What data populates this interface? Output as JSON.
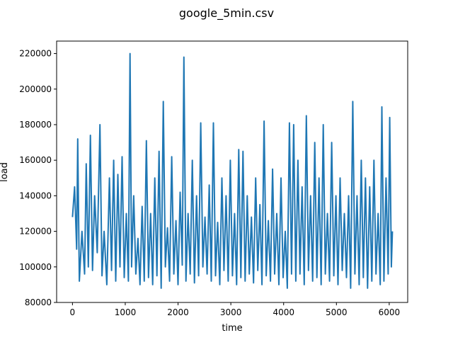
{
  "chart_data": {
    "type": "line",
    "title": "google_5min.csv",
    "xlabel": "time",
    "ylabel": "load",
    "xlim": [
      -300,
      6350
    ],
    "ylim": [
      80000,
      227000
    ],
    "x_ticks": [
      0,
      1000,
      2000,
      3000,
      4000,
      5000,
      6000
    ],
    "x_tick_labels": [
      "0",
      "1000",
      "2000",
      "3000",
      "4000",
      "5000",
      "6000"
    ],
    "y_ticks": [
      80000,
      100000,
      120000,
      140000,
      160000,
      180000,
      200000,
      220000
    ],
    "y_tick_labels": [
      "80000",
      "100000",
      "120000",
      "140000",
      "160000",
      "180000",
      "200000",
      "220000"
    ],
    "grid": false,
    "series": [
      {
        "color": "#1f77b4",
        "x": [
          0,
          40,
          80,
          100,
          130,
          180,
          230,
          260,
          300,
          340,
          380,
          420,
          470,
          520,
          560,
          600,
          650,
          700,
          740,
          780,
          820,
          860,
          900,
          940,
          980,
          1020,
          1060,
          1090,
          1120,
          1160,
          1200,
          1240,
          1280,
          1320,
          1360,
          1400,
          1440,
          1480,
          1520,
          1560,
          1600,
          1640,
          1680,
          1720,
          1760,
          1800,
          1840,
          1880,
          1920,
          1960,
          2000,
          2040,
          2080,
          2110,
          2150,
          2190,
          2230,
          2270,
          2310,
          2350,
          2390,
          2430,
          2470,
          2510,
          2550,
          2590,
          2630,
          2670,
          2710,
          2750,
          2790,
          2830,
          2870,
          2910,
          2950,
          2990,
          3030,
          3070,
          3110,
          3150,
          3190,
          3230,
          3270,
          3310,
          3350,
          3390,
          3430,
          3470,
          3510,
          3550,
          3590,
          3630,
          3670,
          3710,
          3750,
          3790,
          3830,
          3870,
          3910,
          3950,
          3990,
          4030,
          4070,
          4110,
          4150,
          4190,
          4230,
          4270,
          4310,
          4350,
          4390,
          4430,
          4470,
          4510,
          4550,
          4590,
          4630,
          4670,
          4710,
          4750,
          4790,
          4830,
          4870,
          4910,
          4950,
          4990,
          5030,
          5070,
          5110,
          5150,
          5190,
          5230,
          5270,
          5310,
          5350,
          5390,
          5430,
          5470,
          5510,
          5550,
          5590,
          5630,
          5670,
          5710,
          5750,
          5790,
          5830,
          5860,
          5900,
          5940,
          5980,
          6010,
          6040,
          6060
        ],
        "y": [
          128000,
          145000,
          110000,
          172000,
          92000,
          120000,
          96000,
          158000,
          100000,
          174000,
          98000,
          140000,
          108000,
          180000,
          95000,
          120000,
          90000,
          150000,
          98000,
          160000,
          92000,
          152000,
          100000,
          162000,
          94000,
          130000,
          92000,
          220000,
          100000,
          140000,
          96000,
          116000,
          90000,
          134000,
          92000,
          171000,
          94000,
          130000,
          90000,
          150000,
          95000,
          165000,
          88000,
          193000,
          100000,
          122000,
          92000,
          162000,
          96000,
          126000,
          90000,
          142000,
          101000,
          218000,
          92000,
          130000,
          96000,
          160000,
          91000,
          140000,
          95000,
          181000,
          100000,
          128000,
          96000,
          146000,
          92000,
          181000,
          95000,
          125000,
          90000,
          150000,
          98000,
          140000,
          92000,
          160000,
          95000,
          130000,
          90000,
          166000,
          94000,
          165000,
          92000,
          140000,
          96000,
          128000,
          91000,
          150000,
          98000,
          135000,
          90000,
          182000,
          95000,
          126000,
          92000,
          155000,
          96000,
          130000,
          90000,
          150000,
          94000,
          120000,
          88000,
          181000,
          96000,
          180000,
          92000,
          160000,
          96000,
          145000,
          90000,
          185000,
          98000,
          140000,
          92000,
          170000,
          94000,
          150000,
          90000,
          180000,
          96000,
          130000,
          92000,
          170000,
          95000,
          140000,
          90000,
          150000,
          98000,
          130000,
          94000,
          140000,
          88000,
          193000,
          96000,
          140000,
          90000,
          160000,
          94000,
          150000,
          88000,
          145000,
          92000,
          160000,
          96000,
          130000,
          90000,
          190000,
          92000,
          150000,
          96000,
          184000,
          100000,
          120000
        ]
      }
    ]
  }
}
